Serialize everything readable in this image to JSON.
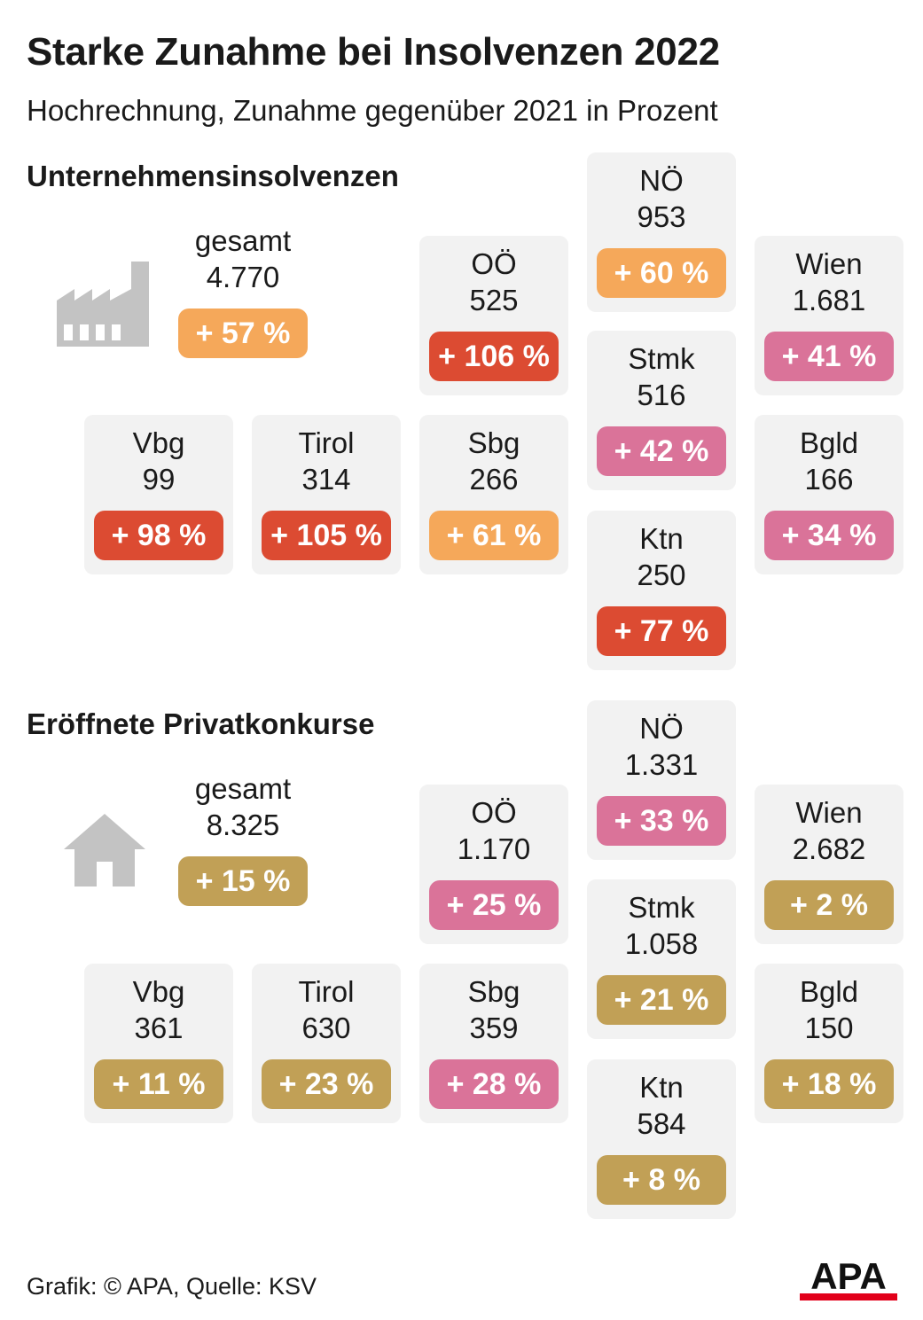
{
  "title": "Starke Zunahme bei Insolvenzen 2022",
  "subtitle": "Hochrechnung, Zunahme gegenüber 2021 in Prozent",
  "colors": {
    "orange": "#f5a85a",
    "red": "#dc4b32",
    "pink": "#da7399",
    "gold": "#c1a056",
    "icon_gray": "#c3c3c3",
    "tile_bg": "#f2f2f2",
    "logo_red": "#e2001a"
  },
  "sections": [
    {
      "title": "Unternehmensinsolvenzen",
      "icon": "factory-icon",
      "total": {
        "name": "gesamt",
        "count": "4.770",
        "change": "+ 57 %",
        "color": "#f5a85a"
      },
      "regions": {
        "noe": {
          "name": "NÖ",
          "count": "953",
          "change": "+ 60 %",
          "color": "#f5a85a"
        },
        "ooe": {
          "name": "OÖ",
          "count": "525",
          "change": "+ 106 %",
          "color": "#dc4b32"
        },
        "wien": {
          "name": "Wien",
          "count": "1.681",
          "change": "+ 41 %",
          "color": "#da7399"
        },
        "stmk": {
          "name": "Stmk",
          "count": "516",
          "change": "+ 42 %",
          "color": "#da7399"
        },
        "vbg": {
          "name": "Vbg",
          "count": "99",
          "change": "+ 98 %",
          "color": "#dc4b32"
        },
        "tirol": {
          "name": "Tirol",
          "count": "314",
          "change": "+ 105 %",
          "color": "#dc4b32"
        },
        "sbg": {
          "name": "Sbg",
          "count": "266",
          "change": "+ 61 %",
          "color": "#f5a85a"
        },
        "bgld": {
          "name": "Bgld",
          "count": "166",
          "change": "+ 34 %",
          "color": "#da7399"
        },
        "ktn": {
          "name": "Ktn",
          "count": "250",
          "change": "+ 77 %",
          "color": "#dc4b32"
        }
      }
    },
    {
      "title": "Eröffnete Privatkonkurse",
      "icon": "house-icon",
      "total": {
        "name": "gesamt",
        "count": "8.325",
        "change": "+ 15 %",
        "color": "#c1a056"
      },
      "regions": {
        "noe": {
          "name": "NÖ",
          "count": "1.331",
          "change": "+ 33 %",
          "color": "#da7399"
        },
        "ooe": {
          "name": "OÖ",
          "count": "1.170",
          "change": "+ 25 %",
          "color": "#da7399"
        },
        "wien": {
          "name": "Wien",
          "count": "2.682",
          "change": "+ 2 %",
          "color": "#c1a056"
        },
        "stmk": {
          "name": "Stmk",
          "count": "1.058",
          "change": "+ 21 %",
          "color": "#c1a056"
        },
        "vbg": {
          "name": "Vbg",
          "count": "361",
          "change": "+ 11 %",
          "color": "#c1a056"
        },
        "tirol": {
          "name": "Tirol",
          "count": "630",
          "change": "+ 23 %",
          "color": "#c1a056"
        },
        "sbg": {
          "name": "Sbg",
          "count": "359",
          "change": "+ 28 %",
          "color": "#da7399"
        },
        "bgld": {
          "name": "Bgld",
          "count": "150",
          "change": "+ 18 %",
          "color": "#c1a056"
        },
        "ktn": {
          "name": "Ktn",
          "count": "584",
          "change": "+ 8 %",
          "color": "#c1a056"
        }
      }
    }
  ],
  "footer": "Grafik: © APA, Quelle: KSV",
  "logo_text": "APA"
}
